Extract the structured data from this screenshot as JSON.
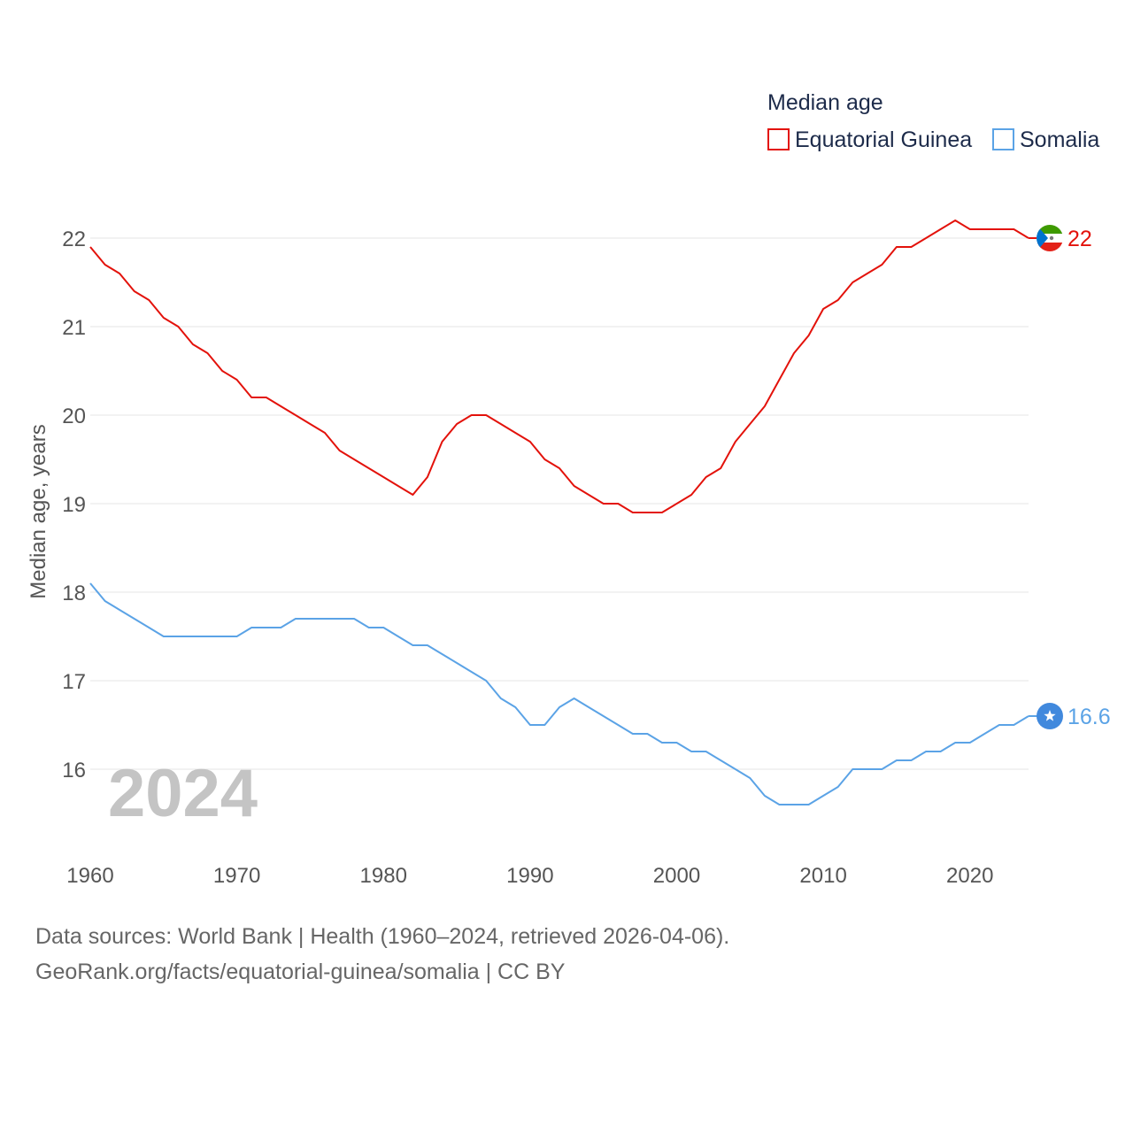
{
  "chart_data": {
    "type": "line",
    "title": "Median age",
    "ylabel": "Median age, years",
    "xlabel": "",
    "xlim": [
      1960,
      2024
    ],
    "ylim": [
      15,
      22.5
    ],
    "x_ticks": [
      1960,
      1970,
      1980,
      1990,
      2000,
      2010,
      2020
    ],
    "y_ticks": [
      16,
      17,
      18,
      19,
      20,
      21,
      22
    ],
    "grid": true,
    "legend_position": "top-right",
    "current_year_label": "2024",
    "x": [
      1960,
      1961,
      1962,
      1963,
      1964,
      1965,
      1966,
      1967,
      1968,
      1969,
      1970,
      1971,
      1972,
      1973,
      1974,
      1975,
      1976,
      1977,
      1978,
      1979,
      1980,
      1981,
      1982,
      1983,
      1984,
      1985,
      1986,
      1987,
      1988,
      1989,
      1990,
      1991,
      1992,
      1993,
      1994,
      1995,
      1996,
      1997,
      1998,
      1999,
      2000,
      2001,
      2002,
      2003,
      2004,
      2005,
      2006,
      2007,
      2008,
      2009,
      2010,
      2011,
      2012,
      2013,
      2014,
      2015,
      2016,
      2017,
      2018,
      2019,
      2020,
      2021,
      2022,
      2023,
      2024
    ],
    "series": [
      {
        "name": "Equatorial Guinea",
        "color": "#e3120b",
        "end_label": "22",
        "end_icon": "equatorial-guinea-flag-icon",
        "values": [
          21.9,
          21.7,
          21.6,
          21.4,
          21.3,
          21.1,
          21.0,
          20.8,
          20.7,
          20.5,
          20.4,
          20.2,
          20.2,
          20.1,
          20.0,
          19.9,
          19.8,
          19.6,
          19.5,
          19.4,
          19.3,
          19.2,
          19.1,
          19.3,
          19.7,
          19.9,
          20.0,
          20.0,
          19.9,
          19.8,
          19.7,
          19.5,
          19.4,
          19.2,
          19.1,
          19.0,
          19.0,
          18.9,
          18.9,
          18.9,
          19.0,
          19.1,
          19.3,
          19.4,
          19.7,
          19.9,
          20.1,
          20.4,
          20.7,
          20.9,
          21.2,
          21.3,
          21.5,
          21.6,
          21.7,
          21.9,
          21.9,
          22.0,
          22.1,
          22.2,
          22.1,
          22.1,
          22.1,
          22.1,
          22.0
        ]
      },
      {
        "name": "Somalia",
        "color": "#5ba3e6",
        "end_label": "16.6",
        "end_icon": "somalia-flag-icon",
        "values": [
          18.1,
          17.9,
          17.8,
          17.7,
          17.6,
          17.5,
          17.5,
          17.5,
          17.5,
          17.5,
          17.5,
          17.6,
          17.6,
          17.6,
          17.7,
          17.7,
          17.7,
          17.7,
          17.7,
          17.6,
          17.6,
          17.5,
          17.4,
          17.4,
          17.3,
          17.2,
          17.1,
          17.0,
          16.8,
          16.7,
          16.5,
          16.5,
          16.7,
          16.8,
          16.7,
          16.6,
          16.5,
          16.4,
          16.4,
          16.3,
          16.3,
          16.2,
          16.2,
          16.1,
          16.0,
          15.9,
          15.7,
          15.6,
          15.6,
          15.6,
          15.7,
          15.8,
          16.0,
          16.0,
          16.0,
          16.1,
          16.1,
          16.2,
          16.2,
          16.3,
          16.3,
          16.4,
          16.5,
          16.5,
          16.6
        ]
      }
    ]
  },
  "footer": {
    "line1": "Data sources: World Bank | Health (1960–2024, retrieved 2026-04-06).",
    "line2": "GeoRank.org/facts/equatorial-guinea/somalia | CC BY"
  },
  "colors": {
    "grid": "#e6e6e6",
    "tick": "#555555",
    "year": "#c4c4c4",
    "eg_flag_green": "#3e9a00",
    "eg_flag_white": "#ffffff",
    "eg_flag_red": "#e32118",
    "eg_flag_blue": "#0073ce",
    "somalia_blue": "#4189dd"
  }
}
